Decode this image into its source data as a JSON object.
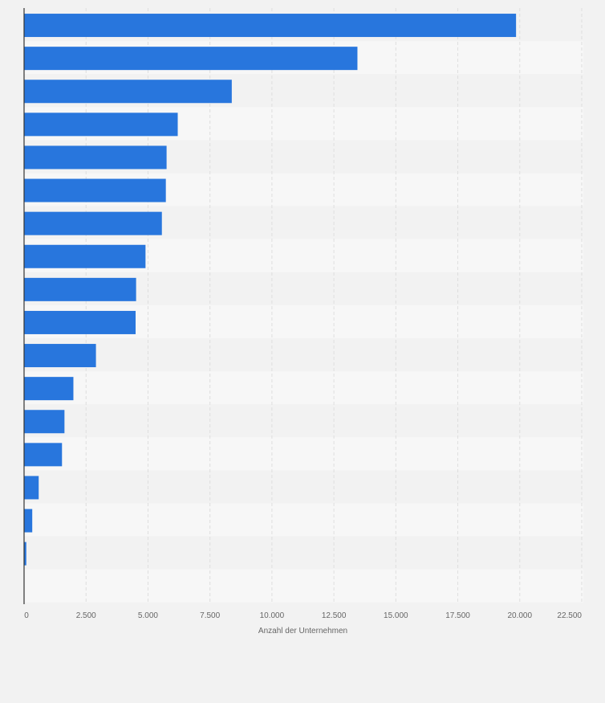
{
  "chart_data": {
    "type": "bar",
    "orientation": "horizontal",
    "title": "",
    "xlabel": "Anzahl der Unternehmen",
    "ylabel": "",
    "xlim": [
      0,
      22500
    ],
    "x_ticks": [
      0,
      2500,
      5000,
      7500,
      10000,
      12500,
      15000,
      17500,
      20000,
      22500
    ],
    "x_tick_labels": [
      "0",
      "2.500",
      "5.000",
      "7.500",
      "10.000",
      "12.500",
      "15.000",
      "17.500",
      "20.000",
      "22.500"
    ],
    "categories": [
      "",
      "",
      "",
      "",
      "",
      "",
      "",
      "",
      "",
      "",
      "",
      "",
      "",
      "",
      "",
      "",
      ""
    ],
    "values": [
      19850,
      13450,
      8380,
      6200,
      5750,
      5720,
      5560,
      4900,
      4520,
      4500,
      2900,
      1990,
      1630,
      1530,
      590,
      330,
      90
    ],
    "grid": true,
    "colors": {
      "bar": "#2876dd",
      "background": "#f2f2f2",
      "band_light": "#f7f7f7",
      "band_dark": "#f2f2f2",
      "grid": "#dedede",
      "axis": "#333333",
      "text": "#666666"
    }
  }
}
